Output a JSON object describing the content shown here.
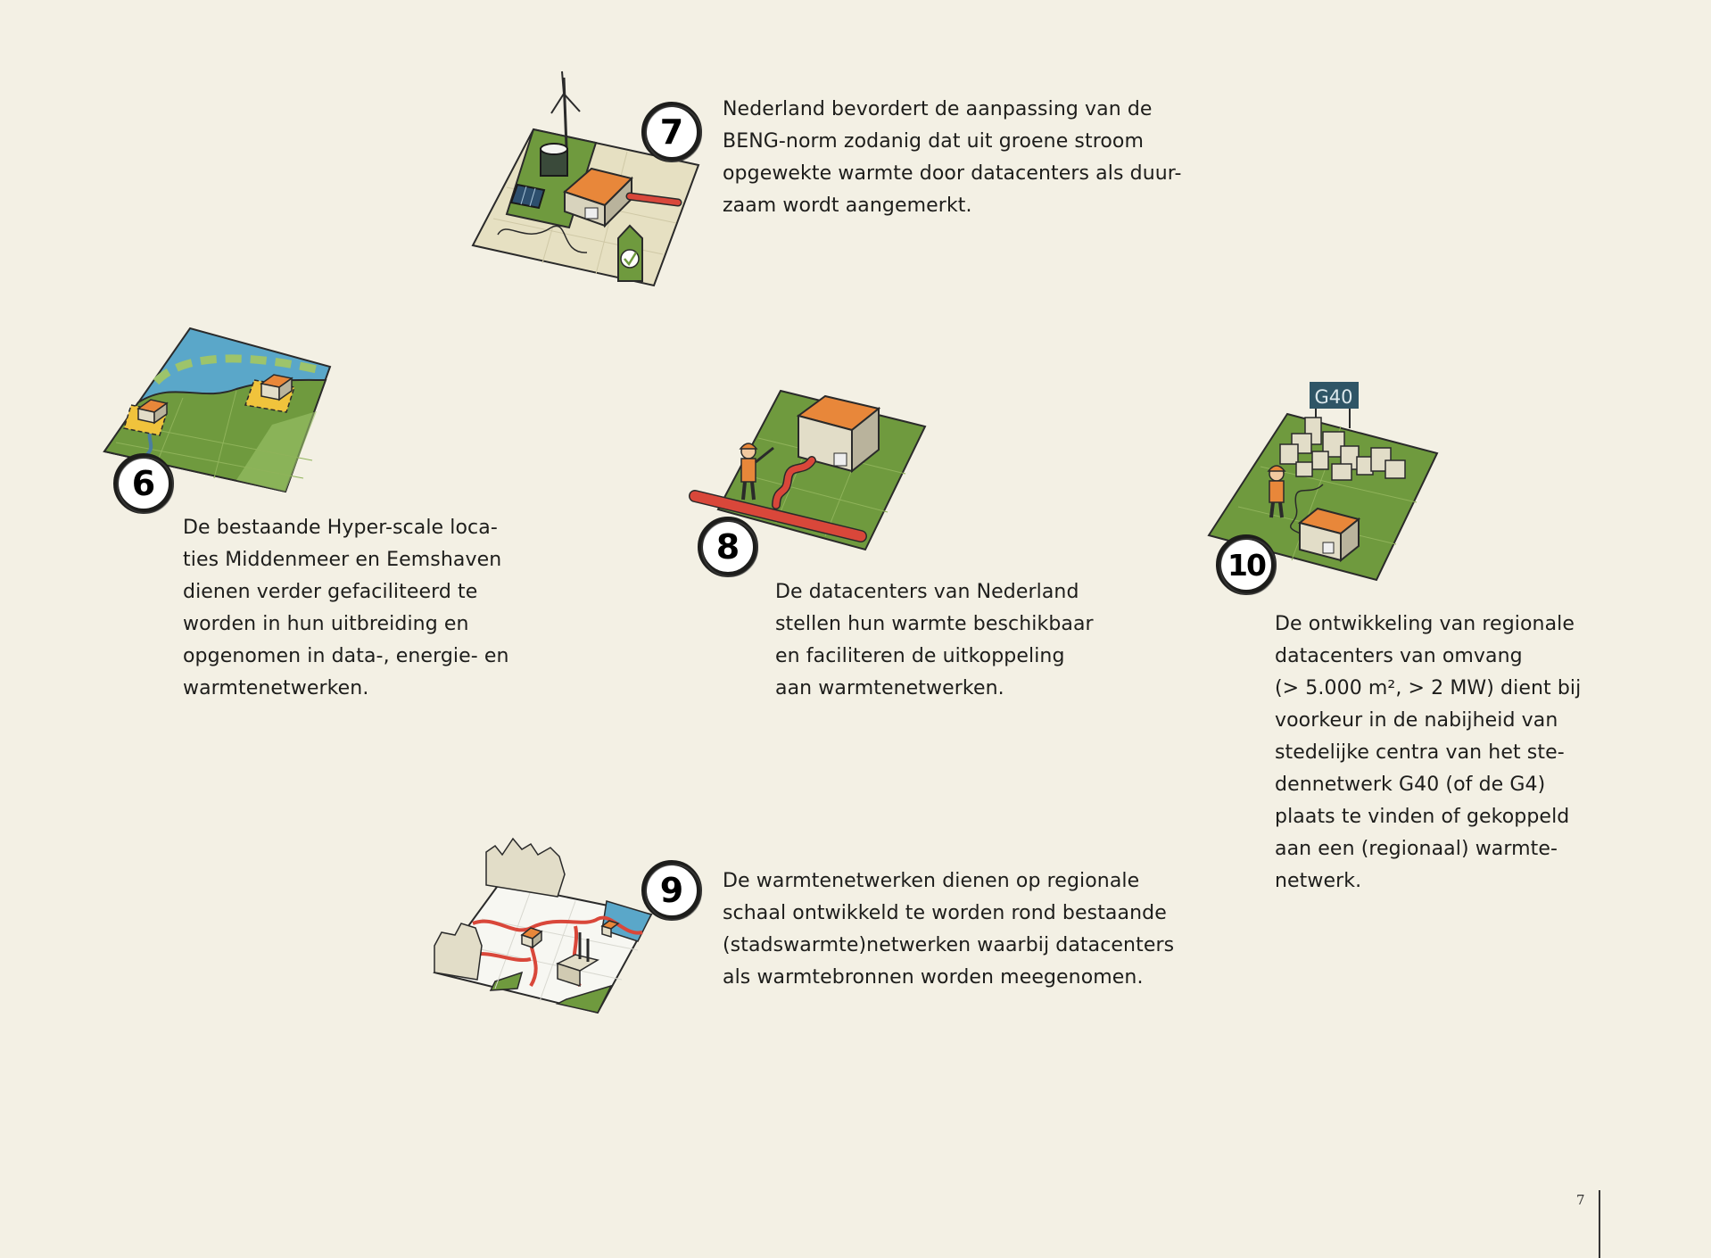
{
  "items": {
    "item6": {
      "number": "6",
      "lines": [
        "De bestaande Hyper-scale loca-",
        "ties Middenmeer en Eemshaven",
        "dienen verder gefaciliteerd te",
        "worden in hun uitbreiding en",
        "opgenomen in data-, energie- en",
        "warmtenetwerken."
      ],
      "icon": "map-waterfront-datacenters-icon"
    },
    "item7": {
      "number": "7",
      "lines": [
        "Nederland bevordert de aanpassing van de",
        "BENG-norm zodanig dat uit groene stroom",
        "opgewekte warmte door datacenters als duur-",
        "zaam wordt aangemerkt."
      ],
      "icon": "green-energy-datacenter-certified-icon"
    },
    "item8": {
      "number": "8",
      "lines": [
        "De datacenters van Nederland",
        "stellen hun warmte beschikbaar",
        "en faciliteren de uitkoppeling",
        "aan warmtenetwerken."
      ],
      "icon": "datacenter-heat-pipe-worker-icon"
    },
    "item9": {
      "number": "9",
      "lines": [
        "De warmtenetwerken dienen op regionale",
        "schaal ontwikkeld te worden rond bestaande",
        "(stadswarmte)netwerken waarbij datacenters",
        "als warmtebronnen worden meegenomen."
      ],
      "icon": "city-heat-network-icon"
    },
    "item10": {
      "number": "10",
      "sign": "G40",
      "lines": [
        "De ontwikkeling van regionale",
        "datacenters van omvang",
        "(> 5.000 m², > 2 MW) dient bij",
        "voorkeur in de nabijheid van",
        "stedelijke centra van het ste-",
        "dennetwerk G40 (of de G4)",
        "plaats te vinden of gekoppeld",
        "aan een (regionaal) warmte-",
        "netwerk."
      ],
      "icon": "city-g40-regional-datacenter-icon"
    }
  },
  "footer": {
    "page_number": "7"
  },
  "colors": {
    "background": "#f3f0e4",
    "grass": "#6f9a3e",
    "orange": "#e8873a",
    "pipe_red": "#d9473a",
    "water": "#5aa7c9",
    "building": "#e2ddc8",
    "yellow": "#f0c33c"
  }
}
